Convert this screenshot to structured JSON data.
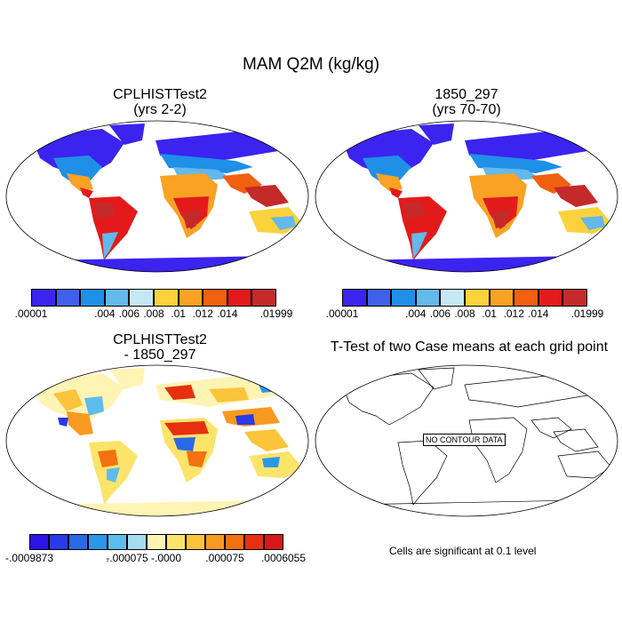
{
  "title": "MAM Q2M (kg/kg)",
  "panels": {
    "p1": {
      "line1": "CPLHISTTest2",
      "line2": "(yrs 2-2)"
    },
    "p2": {
      "line1": "1850_297",
      "line2": "(yrs 70-70)"
    },
    "p3": {
      "line1": "CPLHISTTest2",
      "line2": "- 1850_297"
    },
    "p4": {
      "line1": "T-Test of two Case means at each grid point",
      "nodata": "NO CONTOUR DATA",
      "note": "Cells are significant at 0.1 level"
    }
  },
  "colorbars": {
    "main": {
      "colors": [
        "#3b24f0",
        "#3f60ea",
        "#1f8fe8",
        "#63b8ec",
        "#c6e8f4",
        "#fbd23c",
        "#f9a224",
        "#f06010",
        "#e41a1a",
        "#c42a2a"
      ],
      "labels": [
        ".00001",
        "",
        ".004",
        ".006",
        ".008",
        ".01",
        ".012",
        ".014",
        "",
        ".01999"
      ]
    },
    "diff": {
      "colors": [
        "#2a14e8",
        "#2a3ae6",
        "#2a6ae6",
        "#2a98ea",
        "#5ebcec",
        "#a6dcf0",
        "#fff4b4",
        "#fce46a",
        "#fbc43a",
        "#f99a20",
        "#f5700e",
        "#e63010",
        "#d81818"
      ],
      "labels": [
        "-.0009873",
        "",
        "",
        ".",
        "-.000075",
        "",
        "-.0000",
        "",
        "",
        ".000075",
        "",
        "",
        ".0006055"
      ]
    }
  }
}
